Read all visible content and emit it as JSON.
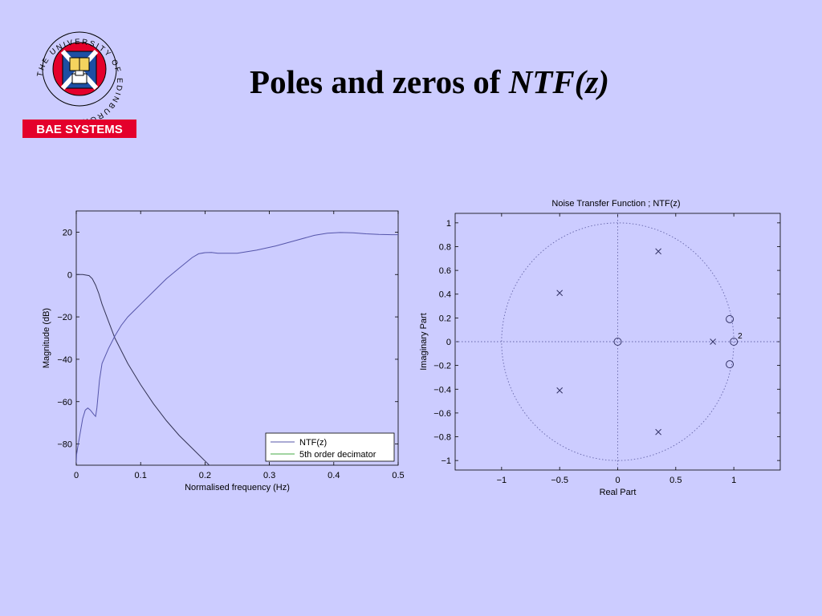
{
  "slide": {
    "title_main": "Poles and zeros of ",
    "title_italic": "NTF(z)"
  },
  "logo": {
    "university_text": "THE UNIVERSITY OF EDINBURGH",
    "sponsor_text": "BAE SYSTEMS"
  },
  "colors": {
    "background": "#ccccff",
    "ntf": "#5555aa",
    "decimator": "#44aa44",
    "bae_red": "#e4002b"
  },
  "chart_data": [
    {
      "type": "line",
      "title": "",
      "xlabel": "Normalised frequency (Hz)",
      "ylabel": "Magnitude (dB)",
      "xlim": [
        0,
        0.5
      ],
      "ylim": [
        -90,
        30
      ],
      "xticks": [
        0,
        0.1,
        0.2,
        0.3,
        0.4,
        0.5
      ],
      "xtick_labels": [
        "0",
        "0.1",
        "0.2",
        "0.3",
        "0.4",
        "0.5"
      ],
      "yticks": [
        20,
        0,
        -20,
        -40,
        -60,
        -80
      ],
      "ytick_labels": [
        "20",
        "0",
        "−20",
        "−40",
        "−60",
        "−80"
      ],
      "grid": false,
      "legend_position": "bottom-right",
      "series": [
        {
          "name": "NTF(z)",
          "x": [
            0.0,
            0.0005,
            0.002,
            0.006,
            0.01,
            0.014,
            0.018,
            0.022,
            0.027,
            0.03,
            0.032,
            0.036,
            0.04,
            0.05,
            0.06,
            0.07,
            0.08,
            0.1,
            0.12,
            0.14,
            0.16,
            0.18,
            0.19,
            0.2,
            0.21,
            0.22,
            0.25,
            0.28,
            0.31,
            0.34,
            0.37,
            0.39,
            0.41,
            0.43,
            0.45,
            0.47,
            0.49,
            0.5
          ],
          "y": [
            -89,
            -85,
            -82,
            -75,
            -68,
            -64,
            -63,
            -64,
            -66,
            -67,
            -63,
            -50,
            -42,
            -35,
            -29,
            -24,
            -20,
            -14,
            -8,
            -2,
            3,
            8,
            9.8,
            10.3,
            10.4,
            10,
            10,
            11.5,
            13.5,
            16,
            18.5,
            19.5,
            19.8,
            19.7,
            19.2,
            18.9,
            18.8,
            18.8
          ]
        },
        {
          "name": "5th order decimator",
          "x": [
            0.0,
            0.01,
            0.02,
            0.025,
            0.03,
            0.035,
            0.04,
            0.05,
            0.06,
            0.08,
            0.1,
            0.12,
            0.14,
            0.16,
            0.18,
            0.2,
            0.21
          ],
          "y": [
            0,
            0,
            -0.5,
            -2,
            -5,
            -9,
            -14,
            -22,
            -30,
            -42,
            -52,
            -61,
            -69,
            -76,
            -82,
            -88,
            -91
          ]
        }
      ]
    },
    {
      "type": "scatter",
      "title": "Noise Transfer Function ; NTF(z)",
      "xlabel": "Real Part",
      "ylabel": "Imaginary Part",
      "xlim": [
        -1.4,
        1.4
      ],
      "ylim": [
        -1.08,
        1.08
      ],
      "xticks": [
        -1,
        -0.5,
        0,
        0.5,
        1
      ],
      "xtick_labels": [
        "−1",
        "−0.5",
        "0",
        "0.5",
        "1"
      ],
      "yticks": [
        1,
        0.8,
        0.6,
        0.4,
        0.2,
        0,
        -0.2,
        -0.4,
        -0.6,
        -0.8,
        -1
      ],
      "ytick_labels": [
        "1",
        "0.8",
        "0.6",
        "0.4",
        "0.2",
        "0",
        "−0.2",
        "−0.4",
        "−0.6",
        "−0.8",
        "−1"
      ],
      "unit_circle": true,
      "grid": false,
      "poles": [
        {
          "re": 0.35,
          "im": 0.76
        },
        {
          "re": -0.5,
          "im": 0.41
        },
        {
          "re": -0.5,
          "im": -0.41
        },
        {
          "re": 0.35,
          "im": -0.76
        },
        {
          "re": 0.82,
          "im": 0
        }
      ],
      "zeros": [
        {
          "re": 0,
          "im": 0
        },
        {
          "re": 0.965,
          "im": 0.19
        },
        {
          "re": 0.965,
          "im": -0.19
        },
        {
          "re": 1.0,
          "im": 0,
          "multiplicity_label": "2"
        }
      ]
    }
  ]
}
